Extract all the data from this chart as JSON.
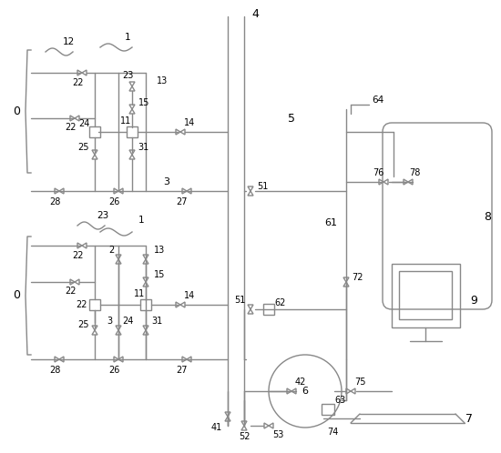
{
  "bg_color": "#ffffff",
  "line_color": "#888888",
  "text_color": "#000000",
  "lw": 1.0,
  "fig_width": 5.5,
  "fig_height": 4.98
}
